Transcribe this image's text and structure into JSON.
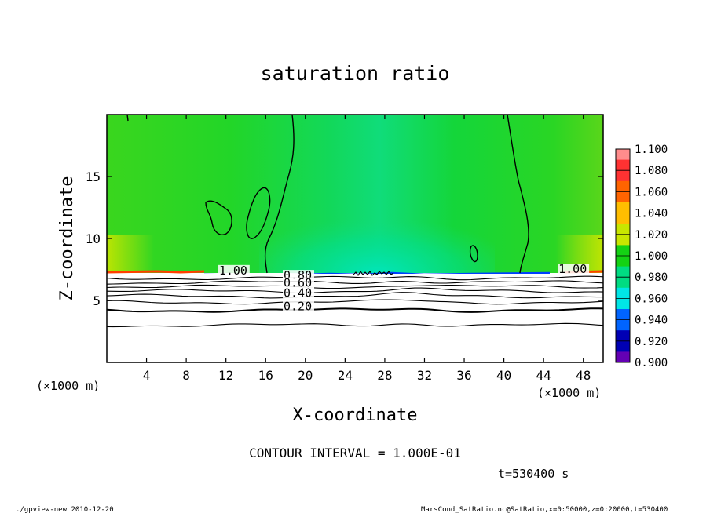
{
  "chart_data": {
    "type": "heatmap",
    "title": "saturation ratio",
    "xlabel": "X-coordinate",
    "ylabel": "Z-coordinate",
    "x_unit_label": "(×1000 m)",
    "y_unit_label": "(×1000 m)",
    "xlim": [
      0,
      50
    ],
    "ylim": [
      0,
      20
    ],
    "x_ticks": [
      "4",
      "8",
      "12",
      "16",
      "20",
      "24",
      "28",
      "32",
      "36",
      "40",
      "44",
      "48"
    ],
    "x_tick_values": [
      4,
      8,
      12,
      16,
      20,
      24,
      28,
      32,
      36,
      40,
      44,
      48
    ],
    "y_ticks": [
      "5",
      "10",
      "15"
    ],
    "y_tick_values": [
      5,
      10,
      15
    ],
    "colorbar": {
      "labels": [
        "1.100",
        "1.080",
        "1.060",
        "1.040",
        "1.020",
        "1.000",
        "0.980",
        "0.960",
        "0.940",
        "0.920",
        "0.900"
      ],
      "colors": [
        "#ff8c8c",
        "#ff3232",
        "#ff6400",
        "#ffbe00",
        "#c8e600",
        "#14d214",
        "#00dc82",
        "#00e6e6",
        "#0064ff",
        "#0000b4",
        "#6400b4"
      ]
    },
    "contour_interval": 0.1,
    "contour_labels": [
      {
        "text": "1.00",
        "x": 11.3,
        "z": 7.1
      },
      {
        "text": "1.00",
        "x": 45.5,
        "z": 7.2
      },
      {
        "text": "0.80",
        "x": 17.8,
        "z": 6.7
      },
      {
        "text": "0.60",
        "x": 17.8,
        "z": 6.1
      },
      {
        "text": "0.40",
        "x": 17.8,
        "z": 5.3
      },
      {
        "text": "0.20",
        "x": 17.8,
        "z": 4.2
      }
    ],
    "lower_contour_levels_z": [
      6.8,
      6.45,
      6.1,
      5.75,
      5.35,
      4.85,
      4.2,
      3.0
    ]
  },
  "annotations": {
    "contour_interval_text": "CONTOUR INTERVAL = 1.000E-01",
    "time_text": "t=530400 s",
    "footer_left": "./gpview-new  2010-12-20",
    "footer_right": "MarsCond_SatRatio.nc@SatRatio,x=0:50000,z=0:20000,t=530400"
  }
}
